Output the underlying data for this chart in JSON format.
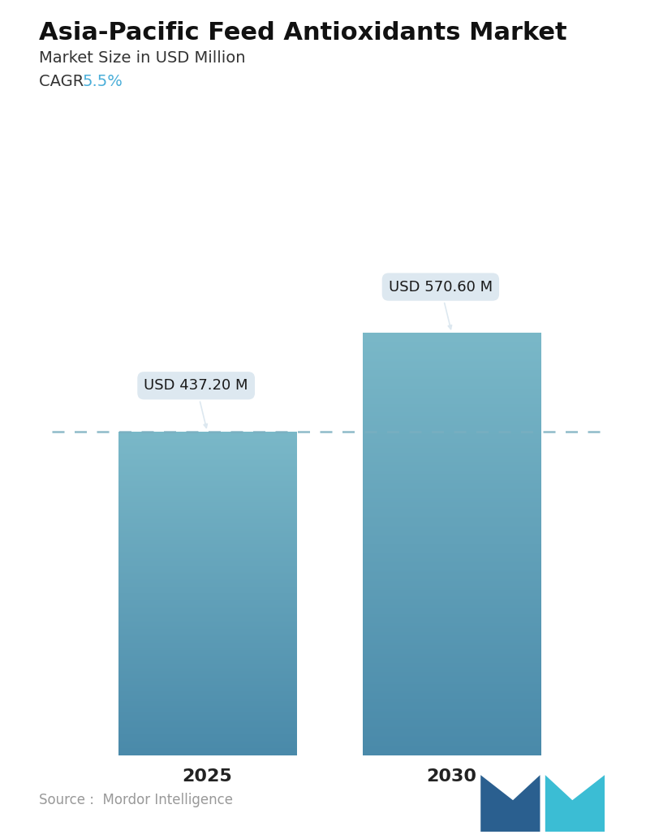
{
  "title": "Asia-Pacific Feed Antioxidants Market",
  "subtitle": "Market Size in USD Million",
  "cagr_label": "CAGR  ",
  "cagr_value": "5.5%",
  "cagr_color": "#4aaed9",
  "categories": [
    "2025",
    "2030"
  ],
  "values": [
    437.2,
    570.6
  ],
  "labels": [
    "USD 437.20 M",
    "USD 570.60 M"
  ],
  "bar_color_top": "#7ab8c8",
  "bar_color_bottom": "#4a8aaa",
  "bar_color_top2": "#7ab8c8",
  "bar_color_bottom2": "#4a8aaa",
  "dashed_line_color": "#7aafc0",
  "dashed_line_value": 437.2,
  "source_text": "Source :  Mordor Intelligence",
  "background_color": "#ffffff",
  "title_fontsize": 22,
  "subtitle_fontsize": 14,
  "cagr_fontsize": 14,
  "tick_fontsize": 16,
  "label_fontsize": 13,
  "source_fontsize": 12,
  "callout_bg": "#dde8f0",
  "callout_text_color": "#1a1a1a",
  "ymax": 680,
  "positions": [
    0.28,
    0.72
  ],
  "bar_width": 0.32
}
